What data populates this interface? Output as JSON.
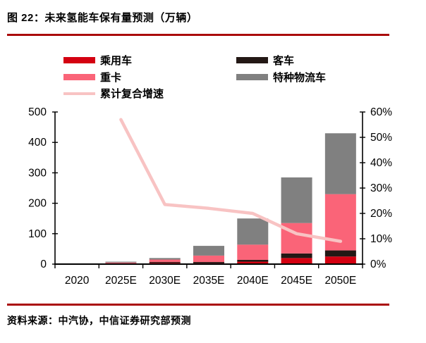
{
  "title": "图 22：未来氢能车保有量预测（万辆）",
  "source": "资料来源：中汽协，中信证券研究部预测",
  "colors": {
    "accent_rule": "#aa0b0b",
    "axis": "#000000",
    "background": "#ffffff"
  },
  "chart_data": {
    "type": "bar",
    "subtype": "stacked-bar-with-line",
    "title": "未来氢能车保有量预测（万辆）",
    "categories": [
      "2020",
      "2025E",
      "2030E",
      "2035E",
      "2040E",
      "2045E",
      "2050E"
    ],
    "series": [
      {
        "name": "乘用车",
        "color": "#d40011",
        "values": [
          0.2,
          1,
          4,
          3,
          8,
          20,
          25
        ]
      },
      {
        "name": "客车",
        "color": "#231815",
        "values": [
          0.2,
          1,
          3,
          4,
          6,
          15,
          20
        ]
      },
      {
        "name": "重卡",
        "color": "#fa6478",
        "values": [
          0.6,
          3,
          8,
          21,
          50,
          100,
          185
        ]
      },
      {
        "name": "特种物流车",
        "color": "#808080",
        "values": [
          0.5,
          3,
          5,
          32,
          86,
          150,
          200
        ]
      }
    ],
    "stack_totals": [
      1.5,
      8,
      20,
      60,
      150,
      285,
      430
    ],
    "line_series": {
      "name": "累计复合增速",
      "color": "#f8c3c3",
      "axis": "right",
      "values": [
        null,
        57,
        23.5,
        22,
        20,
        12,
        9
      ]
    },
    "left_axis": {
      "min": 0,
      "max": 500,
      "step": 100,
      "ticks": [
        "0",
        "100",
        "200",
        "300",
        "400",
        "500"
      ]
    },
    "right_axis": {
      "min": 0,
      "max": 60,
      "step": 10,
      "ticks": [
        "0%",
        "10%",
        "20%",
        "30%",
        "40%",
        "50%",
        "60%"
      ]
    },
    "grid": false,
    "legend_position": "top"
  }
}
